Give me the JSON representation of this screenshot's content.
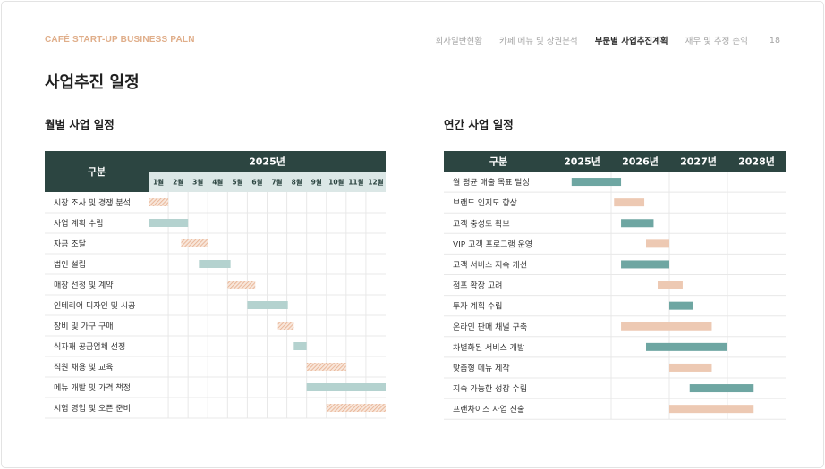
{
  "header": {
    "brand": "CAFÉ START-UP BUSINESS PALN",
    "nav": [
      {
        "label": "회사일반현황",
        "active": false
      },
      {
        "label": "카페 메뉴 및 상권분석",
        "active": false
      },
      {
        "label": "부문별 사업추진계획",
        "active": true
      },
      {
        "label": "재무 및 추정 손익",
        "active": false
      }
    ],
    "page_number": "18"
  },
  "page_title": "사업추진 일정",
  "colors": {
    "header_dark": "#2c4541",
    "month_row": "#dbe7e6",
    "peach": "#edc9b3",
    "teal_light": "#b4d2cf",
    "teal": "#6ea6a2",
    "grid": "#e8e8e8"
  },
  "chart_data": [
    {
      "type": "gantt",
      "title": "월별 사업 일정",
      "header_label": "구분",
      "year_label": "2025년",
      "columns": [
        "1월",
        "2월",
        "3월",
        "4월",
        "5월",
        "6월",
        "7월",
        "8월",
        "9월",
        "10월",
        "11월",
        "12월"
      ],
      "tasks": [
        {
          "name": "시장 조사 및 경쟁 분석",
          "start": 0.0,
          "end": 1.0,
          "style": "hatch-peach"
        },
        {
          "name": "사업 계획 수립",
          "start": 0.0,
          "end": 2.0,
          "style": "solid-teal-light"
        },
        {
          "name": "자금 조달",
          "start": 1.65,
          "end": 3.0,
          "style": "hatch-peach"
        },
        {
          "name": "법인 설립",
          "start": 2.55,
          "end": 4.15,
          "style": "solid-teal-light"
        },
        {
          "name": "매장 선정 및 계약",
          "start": 4.0,
          "end": 5.4,
          "style": "hatch-peach"
        },
        {
          "name": "인테리어 디자인 및 시공",
          "start": 5.0,
          "end": 7.05,
          "style": "solid-teal-light"
        },
        {
          "name": "장비 및 가구 구매",
          "start": 6.55,
          "end": 7.35,
          "style": "hatch-peach"
        },
        {
          "name": "식자재 공급업체 선정",
          "start": 7.35,
          "end": 8.0,
          "style": "solid-teal-light"
        },
        {
          "name": "직원 채용 및 교육",
          "start": 8.0,
          "end": 10.0,
          "style": "hatch-peach"
        },
        {
          "name": "메뉴 개발 및 가격 책정",
          "start": 8.0,
          "end": 12.0,
          "style": "solid-teal-light"
        },
        {
          "name": "시험 영업 및 오픈 준비",
          "start": 9.0,
          "end": 12.0,
          "style": "hatch-peach"
        }
      ]
    },
    {
      "type": "gantt",
      "title": "연간 사업 일정",
      "header_label": "구분",
      "columns": [
        "2025년",
        "2026년",
        "2027년",
        "2028년"
      ],
      "tasks": [
        {
          "name": "월 평균 매출 목표 달성",
          "start": 0.32,
          "end": 1.17,
          "style": "solid-teal"
        },
        {
          "name": "브랜드 인지도 향상",
          "start": 1.05,
          "end": 1.57,
          "style": "solid-peach"
        },
        {
          "name": "고객 충성도 확보",
          "start": 1.17,
          "end": 1.73,
          "style": "solid-teal"
        },
        {
          "name": "VIP 고객 프로그램 운영",
          "start": 1.6,
          "end": 2.0,
          "style": "solid-peach"
        },
        {
          "name": "고객 서비스 지속 개선",
          "start": 1.17,
          "end": 2.0,
          "style": "solid-teal"
        },
        {
          "name": "점포 확장 고려",
          "start": 1.8,
          "end": 2.23,
          "style": "solid-peach"
        },
        {
          "name": "투자 계획 수립",
          "start": 2.0,
          "end": 2.4,
          "style": "solid-teal"
        },
        {
          "name": "온라인 판매 채널 구축",
          "start": 1.17,
          "end": 2.73,
          "style": "solid-peach"
        },
        {
          "name": "차별화된 서비스 개발",
          "start": 1.6,
          "end": 3.0,
          "style": "solid-teal"
        },
        {
          "name": "맞춤형 메뉴 제작",
          "start": 2.0,
          "end": 2.73,
          "style": "solid-peach"
        },
        {
          "name": "지속 가능한 성장 수립",
          "start": 2.35,
          "end": 3.45,
          "style": "solid-teal"
        },
        {
          "name": "프랜차이즈 사업 진출",
          "start": 2.0,
          "end": 3.45,
          "style": "solid-peach"
        }
      ]
    }
  ]
}
